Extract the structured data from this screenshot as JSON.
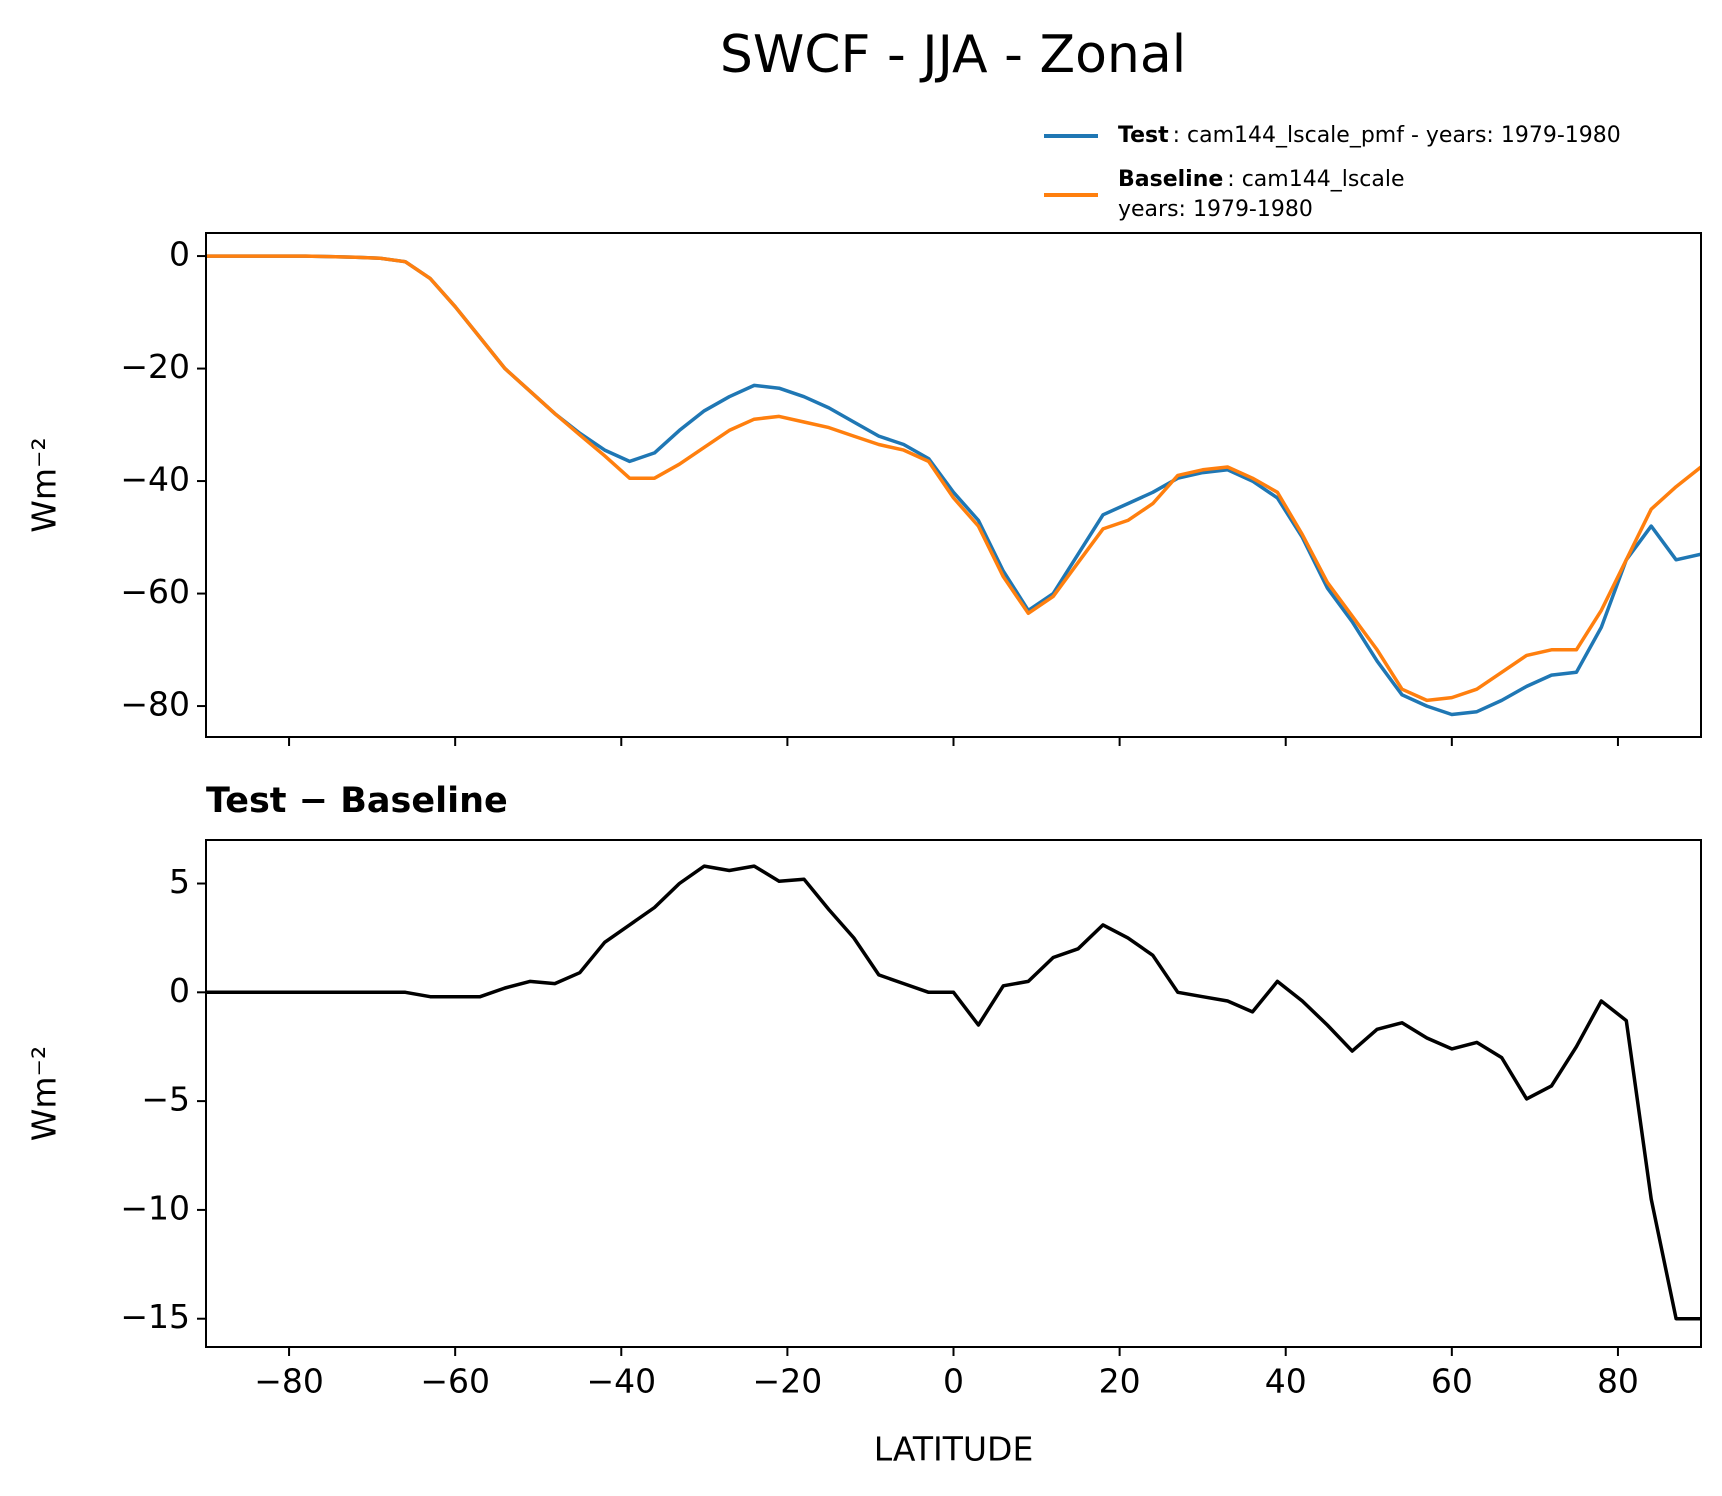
{
  "title": "SWCF - JJA - Zonal",
  "chart_data": [
    {
      "type": "line",
      "ylabel": "Wm⁻²",
      "xlim": [
        -90,
        90
      ],
      "ylim": [
        -85.5,
        4.1
      ],
      "xticks": [
        -80,
        -60,
        -40,
        -20,
        0,
        20,
        40,
        60,
        80
      ],
      "show_xtick_labels": false,
      "yticks": [
        {
          "value": -80,
          "label": "−80"
        },
        {
          "value": -60,
          "label": "−60"
        },
        {
          "value": -40,
          "label": "−40"
        },
        {
          "value": -20,
          "label": "−20"
        },
        0
      ],
      "legend": "upper right",
      "x": [
        -90,
        -87,
        -84,
        -81,
        -78,
        -75,
        -72,
        -69,
        -66,
        -63,
        -60,
        -57,
        -54,
        -51,
        -48,
        -45,
        -42,
        -39,
        -36,
        -33,
        -30,
        -27,
        -24,
        -21,
        -18,
        -15,
        -12,
        -9,
        -6,
        -3,
        0,
        3,
        6,
        9,
        12,
        15,
        18,
        21,
        24,
        27,
        30,
        33,
        36,
        39,
        42,
        45,
        48,
        51,
        54,
        57,
        60,
        63,
        66,
        69,
        72,
        75,
        78,
        81,
        84,
        87,
        90
      ],
      "series": [
        {
          "name": "Test",
          "description": [
            ": cam144_lscale_pmf - years: 1979-1980"
          ],
          "color": "#1f77b4",
          "values": [
            0,
            0,
            0,
            0,
            0,
            -0.1,
            -0.2,
            -0.4,
            -1,
            -4,
            -9,
            -14.5,
            -20,
            -24,
            -28,
            -31.5,
            -34.5,
            -36.5,
            -35,
            -31,
            -27.5,
            -25,
            -23,
            -23.5,
            -25,
            -27,
            -29.5,
            -32,
            -33.5,
            -36,
            -42,
            -47,
            -56,
            -63,
            -60,
            -53,
            -46,
            -44,
            -42,
            -39.5,
            -38.5,
            -38,
            -40,
            -43,
            -50,
            -59,
            -65,
            -72,
            -78,
            -80,
            -81.5,
            -81,
            -79,
            -76.5,
            -74.5,
            -74,
            -66,
            -54,
            -48,
            -54,
            -53
          ]
        },
        {
          "name": "Baseline",
          "description": [
            ": cam144_lscale",
            "years: 1979-1980"
          ],
          "color": "#ff7f0e",
          "values": [
            0,
            0,
            0,
            0,
            0,
            -0.1,
            -0.2,
            -0.4,
            -1,
            -4,
            -9,
            -14.5,
            -20,
            -24,
            -28,
            -31.8,
            -35.5,
            -39.5,
            -39.5,
            -37,
            -34,
            -31,
            -29,
            -28.5,
            -29.5,
            -30.5,
            -32,
            -33.5,
            -34.5,
            -36.5,
            -43,
            -48,
            -57,
            -63.5,
            -60.5,
            -54.5,
            -48.5,
            -47,
            -44,
            -39,
            -38,
            -37.5,
            -39.5,
            -42,
            -49.5,
            -58,
            -64,
            -70,
            -77,
            -79,
            -78.5,
            -77,
            -74,
            -71,
            -70,
            -70,
            -63,
            -54,
            -45,
            -41,
            -37.5
          ]
        }
      ]
    },
    {
      "type": "line",
      "title": "Test − Baseline",
      "xlabel": "LATITUDE",
      "ylabel": "Wm⁻²",
      "xlim": [
        -90,
        90
      ],
      "ylim": [
        -16.3,
        7
      ],
      "xticks": [
        {
          "value": -80,
          "label": "−80"
        },
        {
          "value": -60,
          "label": "−60"
        },
        {
          "value": -40,
          "label": "−40"
        },
        {
          "value": -20,
          "label": "−20"
        },
        0,
        20,
        40,
        60,
        80
      ],
      "show_xtick_labels": true,
      "yticks": [
        {
          "value": -15,
          "label": "−15"
        },
        {
          "value": -10,
          "label": "−10"
        },
        {
          "value": -5,
          "label": "−5"
        },
        0,
        5
      ],
      "x": [
        -90,
        -87,
        -84,
        -81,
        -78,
        -75,
        -72,
        -69,
        -66,
        -63,
        -60,
        -57,
        -54,
        -51,
        -48,
        -45,
        -42,
        -39,
        -36,
        -33,
        -30,
        -27,
        -24,
        -21,
        -18,
        -15,
        -12,
        -9,
        -6,
        -3,
        0,
        3,
        6,
        9,
        12,
        15,
        18,
        21,
        24,
        27,
        30,
        33,
        36,
        39,
        42,
        45,
        48,
        51,
        54,
        57,
        60,
        63,
        66,
        69,
        72,
        75,
        78,
        81,
        84,
        87,
        90
      ],
      "series": [
        {
          "color": "#000000",
          "values": [
            0,
            0,
            0,
            0,
            0,
            0,
            0,
            0,
            0,
            -0.2,
            -0.2,
            -0.2,
            0.2,
            0.5,
            0.4,
            0.9,
            2.3,
            3.1,
            3.9,
            5,
            5.8,
            5.6,
            5.8,
            5.1,
            5.2,
            3.8,
            2.5,
            0.8,
            0.4,
            0,
            0,
            -1.5,
            0.3,
            0.5,
            1.6,
            2,
            3.1,
            2.5,
            1.7,
            0,
            -0.2,
            -0.4,
            -0.9,
            0.5,
            -0.4,
            -1.5,
            -2.7,
            -1.7,
            -1.4,
            -2.1,
            -2.6,
            -2.3,
            -3,
            -4.9,
            -4.3,
            -2.5,
            -0.4,
            -1.3,
            -9.5,
            -15,
            -15
          ]
        }
      ]
    }
  ]
}
